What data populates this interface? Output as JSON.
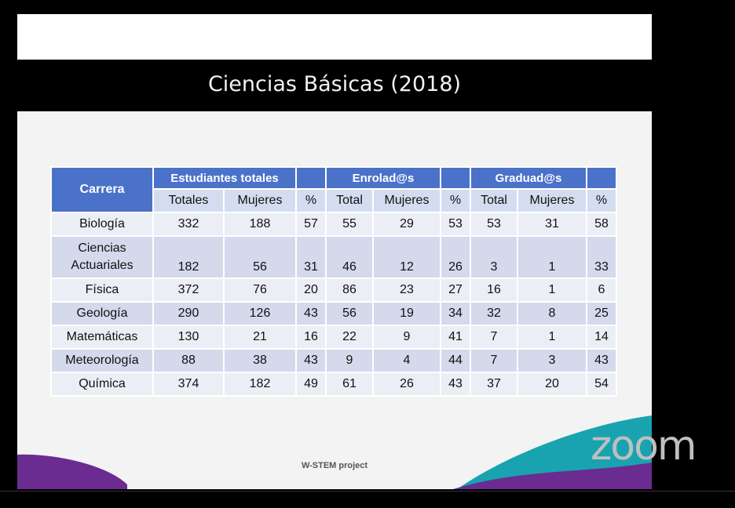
{
  "slide": {
    "title": "Ciencias Básicas (2018)",
    "footer": "W-STEM project"
  },
  "table": {
    "corner_label": "Carrera",
    "groups": [
      "Estudiantes totales",
      "Enrolad@s",
      "Graduad@s"
    ],
    "subheaders": [
      "Totales",
      "Mujeres",
      "%",
      "Total",
      "Mujeres",
      "%",
      "Total",
      "Mujeres",
      "%"
    ],
    "rows": [
      {
        "name": "Biología",
        "values": [
          "332",
          "188",
          "57",
          "55",
          "29",
          "53",
          "53",
          "31",
          "58"
        ]
      },
      {
        "name_line1": "Ciencias",
        "name_line2": "Actuariales",
        "values": [
          "182",
          "56",
          "31",
          "46",
          "12",
          "26",
          "3",
          "1",
          "33"
        ]
      },
      {
        "name": "Física",
        "values": [
          "372",
          "76",
          "20",
          "86",
          "23",
          "27",
          "16",
          "1",
          "6"
        ]
      },
      {
        "name": "Geología",
        "values": [
          "290",
          "126",
          "43",
          "56",
          "19",
          "34",
          "32",
          "8",
          "25"
        ]
      },
      {
        "name": "Matemáticas",
        "values": [
          "130",
          "21",
          "16",
          "22",
          "9",
          "41",
          "7",
          "1",
          "14"
        ]
      },
      {
        "name": "Meteorología",
        "values": [
          "88",
          "38",
          "43",
          "9",
          "4",
          "44",
          "7",
          "3",
          "43"
        ]
      },
      {
        "name": "Química",
        "values": [
          "374",
          "182",
          "49",
          "61",
          "26",
          "43",
          "37",
          "20",
          "54"
        ]
      }
    ]
  },
  "app": {
    "logo_text": "zoom"
  },
  "colors": {
    "header_blue": "#4a72c9",
    "row_dark": "#d4d9ec",
    "row_light": "#eceef6",
    "accent_purple": "#6a2c91",
    "accent_teal": "#19a3b0"
  }
}
